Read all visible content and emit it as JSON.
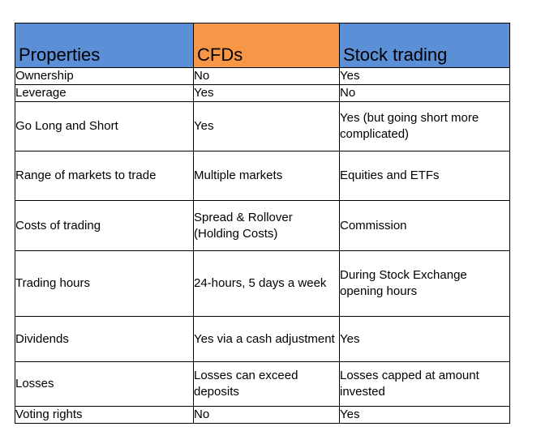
{
  "table": {
    "headers": {
      "properties": "Properties",
      "cfds": "CFDs",
      "stock": "Stock trading"
    },
    "rows": [
      {
        "property": "Ownership",
        "cfd": "No",
        "stock": "Yes"
      },
      {
        "property": "Leverage",
        "cfd": "Yes",
        "stock": "No"
      },
      {
        "property": "Go Long and Short",
        "cfd": "Yes",
        "stock": "Yes (but going short more complicated)"
      },
      {
        "property": "Range of markets to trade",
        "cfd": "Multiple markets",
        "stock": "Equities and ETFs"
      },
      {
        "property": "Costs of trading",
        "cfd": "Spread & Rollover (Holding Costs)",
        "stock": "Commission"
      },
      {
        "property": "Trading hours",
        "cfd": "24-hours, 5 days a week",
        "stock": "During Stock Exchange opening hours"
      },
      {
        "property": "Dividends",
        "cfd": "Yes via a cash adjustment",
        "stock": "Yes"
      },
      {
        "property": "Losses",
        "cfd": "Losses can exceed deposits",
        "stock": "Losses capped at amount invested"
      },
      {
        "property": "Voting rights",
        "cfd": "No",
        "stock": "Yes"
      }
    ],
    "colors": {
      "properties_header_bg": "#5b8fd6",
      "cfds_header_bg": "#f79646",
      "stock_header_bg": "#5b8fd6"
    }
  }
}
